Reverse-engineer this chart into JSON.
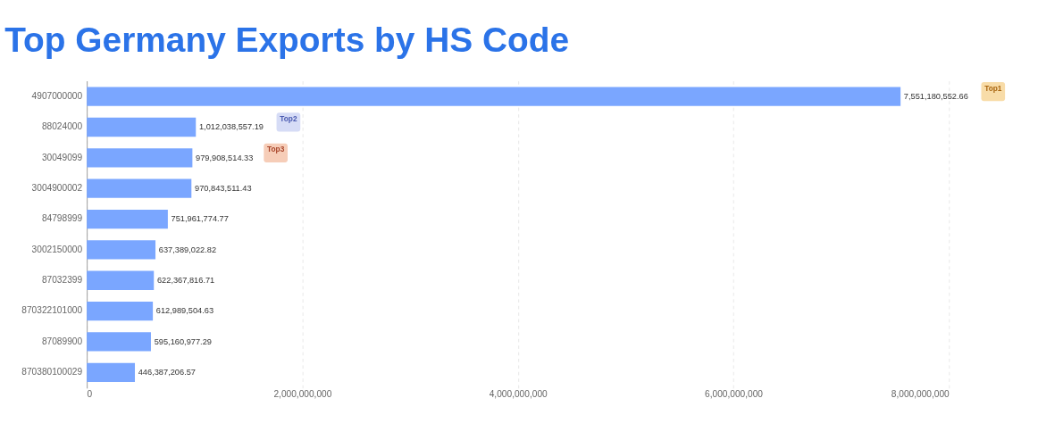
{
  "chart_data": {
    "type": "bar",
    "orientation": "horizontal",
    "title": "Top Germany Exports by HS Code",
    "categories": [
      "4907000000",
      "88024000",
      "30049099",
      "3004900002",
      "84798999",
      "3002150000",
      "87032399",
      "870322101000",
      "87089900",
      "870380100029"
    ],
    "values": [
      7551180552.66,
      1012038557.19,
      979908514.33,
      970843511.43,
      751961774.77,
      637389022.82,
      622367816.71,
      612989504.63,
      595160977.29,
      446387206.57
    ],
    "value_labels": [
      "7,551,180,552.66",
      "1,012,038,557.19",
      "979,908,514.33",
      "970,843,511.43",
      "751,961,774.77",
      "637,389,022.82",
      "622,367,816.71",
      "612,989,504.63",
      "595,160,977.29",
      "446,387,206.57"
    ],
    "color": "#7aa6ff",
    "xlim": [
      0,
      8000000000
    ],
    "xticks": [
      0,
      {
        "value": 2000000000,
        "label": "2,000,000,000"
      },
      {
        "value": 4000000000,
        "label": "4,000,000,000"
      },
      {
        "value": 6000000000,
        "label": "6,000,000,000"
      },
      {
        "value": 8000000000,
        "label": "8,000,000,000"
      }
    ],
    "grid": "x",
    "annotations": [
      "Top1",
      "Top2",
      "Top3"
    ]
  }
}
